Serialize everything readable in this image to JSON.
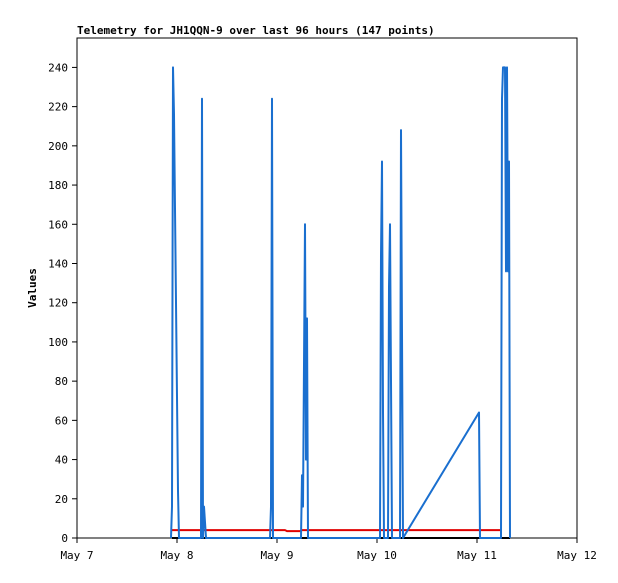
{
  "chart_data": {
    "type": "line",
    "title": "Telemetry for JH1QQN-9 over last 96 hours (147 points)",
    "y_label": "Values",
    "xlim": [
      0,
      5
    ],
    "xticks": [
      {
        "value": 0,
        "label": "May 7"
      },
      {
        "value": 1,
        "label": "May 8"
      },
      {
        "value": 2,
        "label": "May 9"
      },
      {
        "value": 3,
        "label": "May 10"
      },
      {
        "value": 4,
        "label": "May 11"
      },
      {
        "value": 5,
        "label": "May 12"
      }
    ],
    "ylim": [
      0,
      255
    ],
    "yticks": [
      0,
      20,
      40,
      60,
      80,
      100,
      120,
      140,
      160,
      180,
      200,
      220,
      240
    ],
    "series": [
      {
        "color": "#000000",
        "x": [
          0.95,
          4.33
        ],
        "values": [
          0,
          0
        ]
      },
      {
        "color": "#e00000",
        "x": [
          0.95,
          2.08,
          2.1,
          2.23,
          2.25,
          4.25
        ],
        "values": [
          4,
          4,
          3.5,
          3.5,
          4,
          4
        ]
      },
      {
        "color": "#1a6fcf",
        "x": [
          0.94,
          0.95,
          0.96,
          0.97,
          0.98,
          0.99,
          1.0,
          1.01,
          1.02,
          1.24,
          1.25,
          1.26,
          1.27,
          1.28,
          1.29,
          1.93,
          1.94,
          1.95,
          1.96,
          2.24,
          2.25,
          2.26,
          2.28,
          2.29,
          2.3,
          2.31,
          3.03,
          3.04,
          3.05,
          3.06,
          3.07,
          3.11,
          3.12,
          3.13,
          3.14,
          3.15,
          3.23,
          3.24,
          3.25,
          3.26,
          4.02,
          4.03,
          4.24,
          4.25,
          4.26,
          4.28,
          4.29,
          4.3,
          4.31,
          4.32,
          4.33
        ],
        "values": [
          0,
          16,
          240,
          216,
          168,
          120,
          72,
          24,
          0,
          0,
          224,
          0,
          16,
          8,
          0,
          0,
          16,
          224,
          0,
          0,
          32,
          16,
          160,
          40,
          112,
          0,
          0,
          144,
          192,
          64,
          0,
          0,
          128,
          160,
          80,
          0,
          0,
          208,
          104,
          0,
          64,
          0,
          0,
          224,
          240,
          240,
          136,
          240,
          136,
          192,
          0
        ]
      }
    ]
  }
}
